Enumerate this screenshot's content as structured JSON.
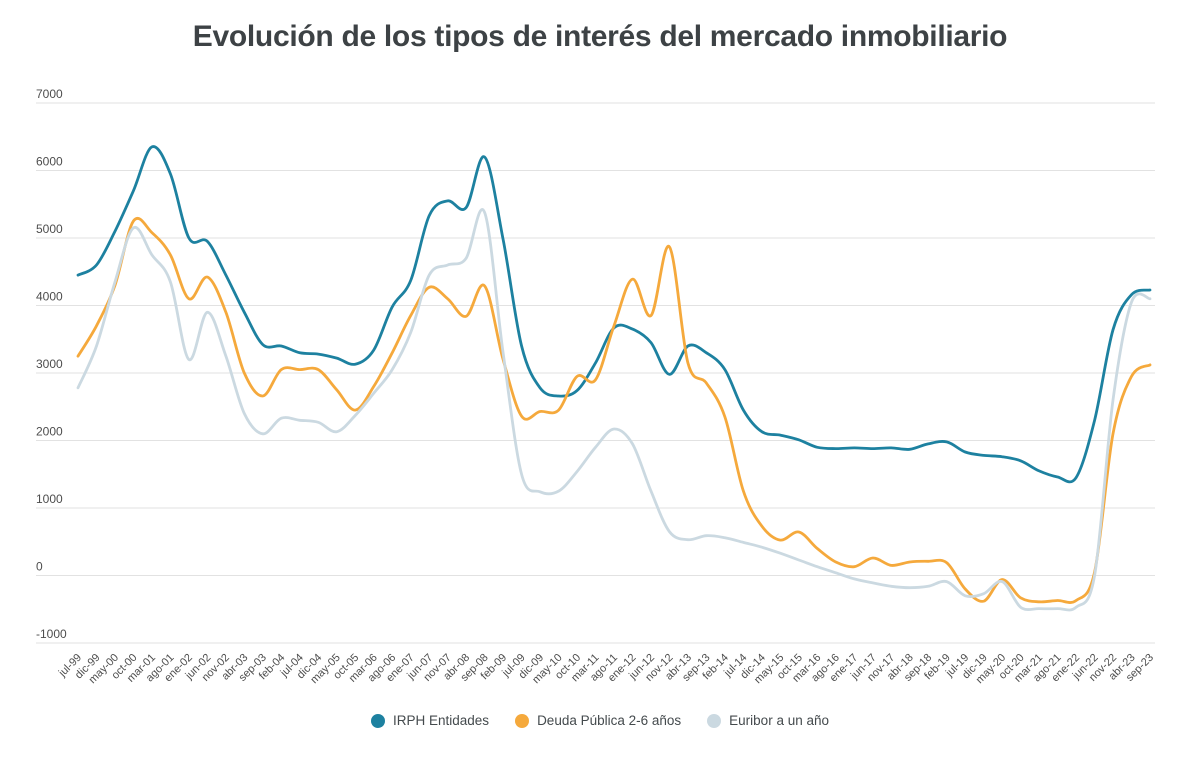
{
  "title": "Evolución de los tipos de interés del mercado inmobiliario",
  "colors": {
    "irph": "#1D81A0",
    "deuda": "#F5A93C",
    "euribor": "#CBD9E1",
    "gridline": "#E2E2E2",
    "axis_label": "#4D4D4D",
    "title_text": "#3D4245",
    "background": "#FFFFFF"
  },
  "chart_data": {
    "type": "line",
    "title": "Evolución de los tipos de interés del mercado inmobiliario",
    "xlabel": "",
    "ylabel": "",
    "ylim": [
      -1000,
      7000
    ],
    "ytick_step": 1000,
    "grid": true,
    "legend_position": "bottom",
    "categories": [
      "jul-99",
      "dic-99",
      "may-00",
      "oct-00",
      "mar-01",
      "ago-01",
      "ene-02",
      "jun-02",
      "nov-02",
      "abr-03",
      "sep-03",
      "feb-04",
      "jul-04",
      "dic-04",
      "may-05",
      "oct-05",
      "mar-06",
      "ago-06",
      "ene-07",
      "jun-07",
      "nov-07",
      "abr-08",
      "sep-08",
      "feb-09",
      "jul-09",
      "dic-09",
      "may-10",
      "oct-10",
      "mar-11",
      "ago-11",
      "ene-12",
      "jun-12",
      "nov-12",
      "abr-13",
      "sep-13",
      "feb-14",
      "jul-14",
      "dic-14",
      "may-15",
      "oct-15",
      "mar-16",
      "ago-16",
      "ene-17",
      "jun-17",
      "nov-17",
      "abr-18",
      "sep-18",
      "feb-19",
      "jul-19",
      "dic-19",
      "may-20",
      "oct-20",
      "mar-21",
      "ago-21",
      "ene-22",
      "jun-22",
      "nov-22",
      "abr-23",
      "sep-23"
    ],
    "series": [
      {
        "name": "IRPH Entidades",
        "color": "#1D81A0",
        "values": [
          4450,
          4600,
          5100,
          5700,
          6350,
          5950,
          5000,
          4950,
          4450,
          3900,
          3420,
          3400,
          3300,
          3280,
          3220,
          3130,
          3340,
          3980,
          4370,
          5330,
          5550,
          5450,
          6200,
          4980,
          3400,
          2780,
          2660,
          2740,
          3150,
          3670,
          3650,
          3450,
          2980,
          3400,
          3300,
          3050,
          2450,
          2130,
          2080,
          2010,
          1900,
          1880,
          1890,
          1880,
          1890,
          1870,
          1950,
          1980,
          1830,
          1780,
          1760,
          1700,
          1550,
          1460,
          1450,
          2300,
          3640,
          4160,
          4230
        ]
      },
      {
        "name": "Deuda Pública 2-6 años",
        "color": "#F5A93C",
        "values": [
          3250,
          3700,
          4300,
          5250,
          5080,
          4750,
          4100,
          4420,
          3900,
          3000,
          2660,
          3050,
          3050,
          3050,
          2750,
          2450,
          2800,
          3300,
          3850,
          4270,
          4100,
          3840,
          4290,
          3200,
          2360,
          2430,
          2450,
          2950,
          2900,
          3700,
          4390,
          3850,
          4870,
          3150,
          2850,
          2350,
          1250,
          730,
          525,
          645,
          400,
          200,
          130,
          260,
          150,
          200,
          210,
          190,
          -200,
          -380,
          -60,
          -330,
          -390,
          -370,
          -370,
          50,
          2100,
          2950,
          3120
        ]
      },
      {
        "name": "Euribor a un año",
        "color": "#CBD9E1",
        "values": [
          2780,
          3400,
          4350,
          5150,
          4750,
          4350,
          3200,
          3900,
          3250,
          2400,
          2100,
          2330,
          2300,
          2270,
          2130,
          2370,
          2700,
          3050,
          3600,
          4450,
          4600,
          4700,
          5380,
          3300,
          1500,
          1240,
          1250,
          1540,
          1900,
          2170,
          1950,
          1250,
          650,
          530,
          590,
          560,
          490,
          420,
          330,
          230,
          130,
          40,
          -50,
          -110,
          -160,
          -180,
          -160,
          -90,
          -300,
          -270,
          -90,
          -470,
          -490,
          -490,
          -470,
          0,
          2600,
          4050,
          4100
        ]
      }
    ]
  }
}
